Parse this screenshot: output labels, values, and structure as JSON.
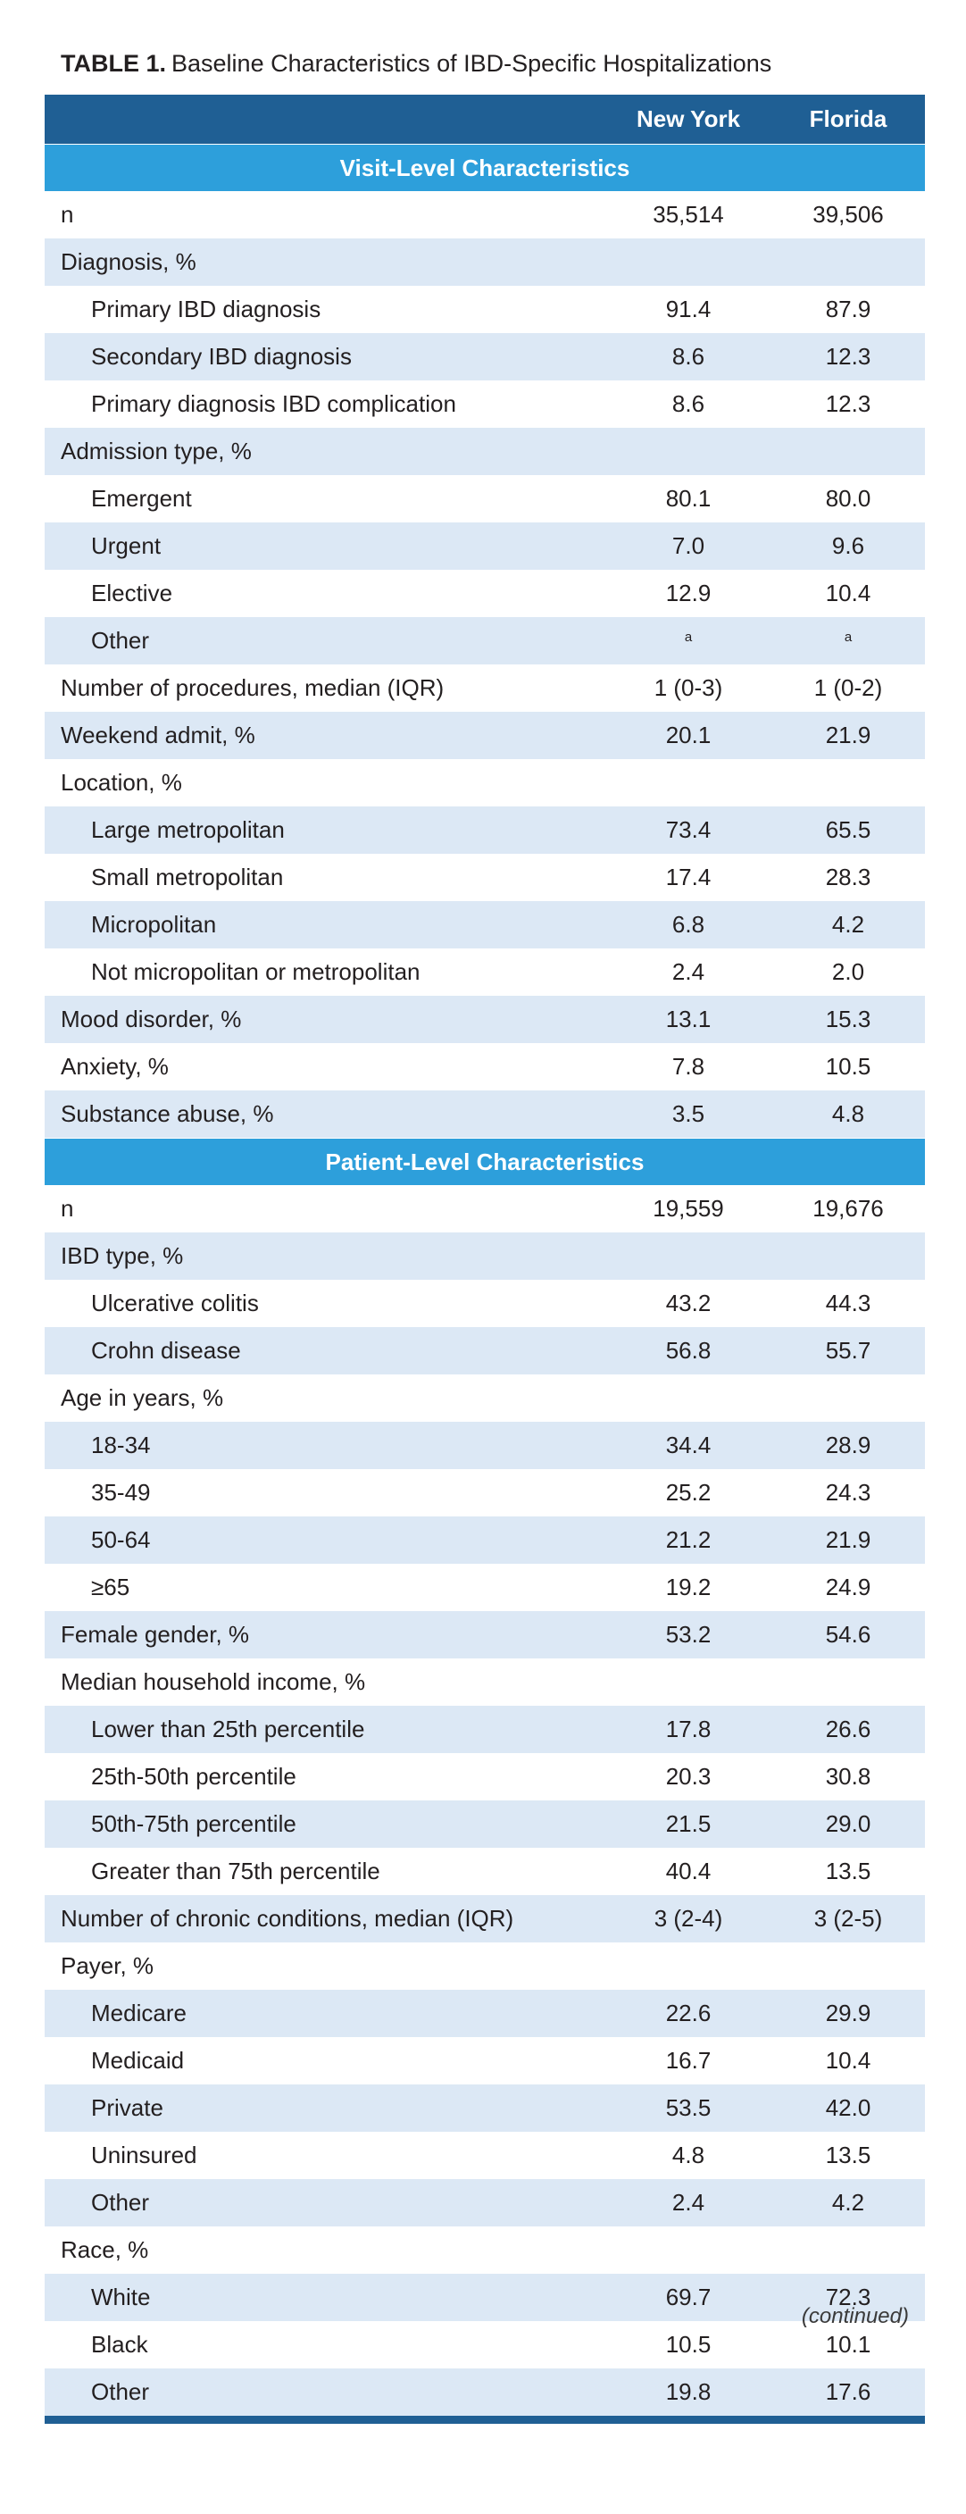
{
  "caption": {
    "label": "TABLE 1.",
    "title": "Baseline Characteristics of IBD-Specific Hospitalizations"
  },
  "columns": {
    "new_york": "New York",
    "florida": "Florida"
  },
  "sections": [
    {
      "title": "Visit-Level Characteristics",
      "rows": [
        {
          "label": "n",
          "ny": "35,514",
          "fl": "39,506",
          "indent": false
        },
        {
          "label": "Diagnosis, %",
          "ny": "",
          "fl": "",
          "indent": false
        },
        {
          "label": "Primary IBD diagnosis",
          "ny": "91.4",
          "fl": "87.9",
          "indent": true
        },
        {
          "label": "Secondary IBD diagnosis",
          "ny": "8.6",
          "fl": "12.3",
          "indent": true
        },
        {
          "label": "Primary diagnosis IBD complication",
          "ny": "8.6",
          "fl": "12.3",
          "indent": true
        },
        {
          "label": "Admission type, %",
          "ny": "",
          "fl": "",
          "indent": false
        },
        {
          "label": "Emergent",
          "ny": "80.1",
          "fl": "80.0",
          "indent": true
        },
        {
          "label": "Urgent",
          "ny": "7.0",
          "fl": "9.6",
          "indent": true
        },
        {
          "label": "Elective",
          "ny": "12.9",
          "fl": "10.4",
          "indent": true
        },
        {
          "label": "Other",
          "ny": "a",
          "fl": "a",
          "indent": true,
          "superscript": true
        },
        {
          "label": "Number of procedures, median (IQR)",
          "ny": "1 (0-3)",
          "fl": "1 (0-2)",
          "indent": false
        },
        {
          "label": "Weekend admit, %",
          "ny": "20.1",
          "fl": "21.9",
          "indent": false
        },
        {
          "label": "Location, %",
          "ny": "",
          "fl": "",
          "indent": false
        },
        {
          "label": "Large metropolitan",
          "ny": "73.4",
          "fl": "65.5",
          "indent": true
        },
        {
          "label": "Small metropolitan",
          "ny": "17.4",
          "fl": "28.3",
          "indent": true
        },
        {
          "label": "Micropolitan",
          "ny": "6.8",
          "fl": "4.2",
          "indent": true
        },
        {
          "label": "Not micropolitan or metropolitan",
          "ny": "2.4",
          "fl": "2.0",
          "indent": true
        },
        {
          "label": "Mood disorder, %",
          "ny": "13.1",
          "fl": "15.3",
          "indent": false
        },
        {
          "label": "Anxiety, %",
          "ny": "7.8",
          "fl": "10.5",
          "indent": false
        },
        {
          "label": "Substance abuse, %",
          "ny": "3.5",
          "fl": "4.8",
          "indent": false
        }
      ]
    },
    {
      "title": "Patient-Level Characteristics",
      "rows": [
        {
          "label": "n",
          "ny": "19,559",
          "fl": "19,676",
          "indent": false
        },
        {
          "label": "IBD type, %",
          "ny": "",
          "fl": "",
          "indent": false
        },
        {
          "label": "Ulcerative colitis",
          "ny": "43.2",
          "fl": "44.3",
          "indent": true
        },
        {
          "label": "Crohn disease",
          "ny": "56.8",
          "fl": "55.7",
          "indent": true
        },
        {
          "label": "Age in years, %",
          "ny": "",
          "fl": "",
          "indent": false
        },
        {
          "label": "18-34",
          "ny": "34.4",
          "fl": "28.9",
          "indent": true
        },
        {
          "label": "35-49",
          "ny": "25.2",
          "fl": "24.3",
          "indent": true
        },
        {
          "label": "50-64",
          "ny": "21.2",
          "fl": "21.9",
          "indent": true
        },
        {
          "label": "≥65",
          "ny": "19.2",
          "fl": "24.9",
          "indent": true
        },
        {
          "label": "Female gender, %",
          "ny": "53.2",
          "fl": "54.6",
          "indent": false
        },
        {
          "label": "Median household income, %",
          "ny": "",
          "fl": "",
          "indent": false
        },
        {
          "label": "Lower than 25th percentile",
          "ny": "17.8",
          "fl": "26.6",
          "indent": true
        },
        {
          "label": "25th-50th percentile",
          "ny": "20.3",
          "fl": "30.8",
          "indent": true
        },
        {
          "label": "50th-75th percentile",
          "ny": "21.5",
          "fl": "29.0",
          "indent": true
        },
        {
          "label": "Greater than 75th percentile",
          "ny": "40.4",
          "fl": "13.5",
          "indent": true
        },
        {
          "label": "Number of chronic conditions, median (IQR)",
          "ny": "3 (2-4)",
          "fl": "3 (2-5)",
          "indent": false
        },
        {
          "label": "Payer, %",
          "ny": "",
          "fl": "",
          "indent": false
        },
        {
          "label": "Medicare",
          "ny": "22.6",
          "fl": "29.9",
          "indent": true
        },
        {
          "label": "Medicaid",
          "ny": "16.7",
          "fl": "10.4",
          "indent": true
        },
        {
          "label": "Private",
          "ny": "53.5",
          "fl": "42.0",
          "indent": true
        },
        {
          "label": "Uninsured",
          "ny": "4.8",
          "fl": "13.5",
          "indent": true
        },
        {
          "label": "Other",
          "ny": "2.4",
          "fl": "4.2",
          "indent": true
        },
        {
          "label": "Race, %",
          "ny": "",
          "fl": "",
          "indent": false
        },
        {
          "label": "White",
          "ny": "69.7",
          "fl": "72.3",
          "indent": true
        },
        {
          "label": "Black",
          "ny": "10.5",
          "fl": "10.1",
          "indent": true
        },
        {
          "label": "Other",
          "ny": "19.8",
          "fl": "17.6",
          "indent": true
        }
      ]
    }
  ],
  "footer": {
    "continued": "(continued)"
  },
  "colors": {
    "header_dark": "#1f5f94",
    "section_blue": "#2d9fdb",
    "row_shade": "#dce8f5"
  }
}
